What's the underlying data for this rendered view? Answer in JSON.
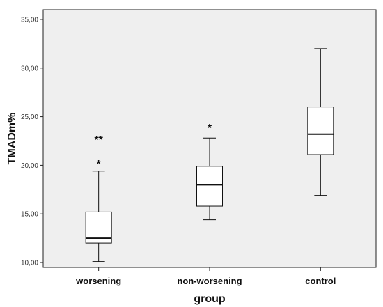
{
  "chart_data": {
    "type": "boxplot",
    "xlabel": "group",
    "ylabel": "TMADm%",
    "ylim": [
      9.5,
      36.0
    ],
    "yticks": [
      10,
      15,
      20,
      25,
      30,
      35
    ],
    "ytick_labels": [
      "10,00",
      "15,00",
      "20,00",
      "25,00",
      "30,00",
      "35,00"
    ],
    "grid": false,
    "plot_background": "#efefef",
    "categories": [
      "worsening",
      "non-worsening",
      "control"
    ],
    "boxes": [
      {
        "category": "worsening",
        "whisker_low": 10.1,
        "q1": 12.0,
        "median": 12.5,
        "q3": 15.2,
        "whisker_high": 19.4,
        "outliers": [
          {
            "value": 20.4,
            "marker": "*"
          },
          {
            "value": 22.9,
            "marker": "**"
          }
        ]
      },
      {
        "category": "non-worsening",
        "whisker_low": 14.4,
        "q1": 15.8,
        "median": 18.0,
        "q3": 19.9,
        "whisker_high": 22.8,
        "outliers": [
          {
            "value": 24.1,
            "marker": "*"
          }
        ]
      },
      {
        "category": "control",
        "whisker_low": 16.9,
        "q1": 21.1,
        "median": 23.2,
        "q3": 26.0,
        "whisker_high": 32.0,
        "outliers": []
      }
    ]
  }
}
